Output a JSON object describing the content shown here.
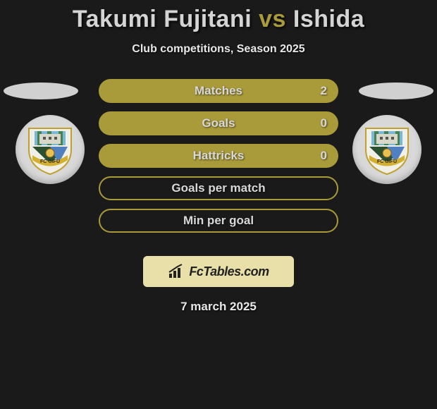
{
  "title": {
    "player1": "Takumi Fujitani",
    "vs": "vs",
    "player2": "Ishida"
  },
  "subtitle": "Club competitions, Season 2025",
  "colors": {
    "bar_fill": "#a99a3a",
    "bar_border": "#a99a3a",
    "bar_empty_border": "#a99a3a",
    "title_highlight": "#a99a3a",
    "background": "#1a1a1a",
    "ellipse": "#d0d0d0",
    "badge_bg": "#d8d8d8",
    "attrib_bg": "#e8e0a8",
    "text_light": "#d8d8d8"
  },
  "stats": [
    {
      "label": "Matches",
      "value": "2",
      "filled": true
    },
    {
      "label": "Goals",
      "value": "0",
      "filled": true
    },
    {
      "label": "Hattricks",
      "value": "0",
      "filled": true
    },
    {
      "label": "Goals per match",
      "value": "",
      "filled": false
    },
    {
      "label": "Min per goal",
      "value": "",
      "filled": false
    }
  ],
  "attribution": "FcTables.com",
  "footer_date": "7 march 2025",
  "club_name": "FC GIFU"
}
